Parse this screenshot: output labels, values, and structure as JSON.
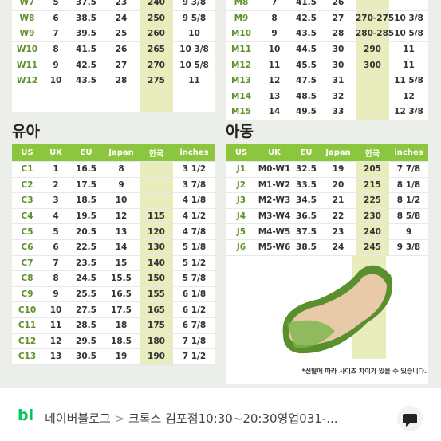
{
  "top_left": {
    "rows": [
      [
        "W7",
        "5",
        "37.5",
        "23",
        "240",
        "9 3/8"
      ],
      [
        "W8",
        "6",
        "38.5",
        "24",
        "250",
        "9 5/8"
      ],
      [
        "W9",
        "7",
        "39.5",
        "25",
        "260",
        "10"
      ],
      [
        "W10",
        "8",
        "41.5",
        "26",
        "265",
        "10 3/8"
      ],
      [
        "W11",
        "9",
        "42.5",
        "27",
        "270",
        "10 5/8"
      ],
      [
        "W12",
        "10",
        "43.5",
        "28",
        "275",
        "11"
      ]
    ]
  },
  "top_right": {
    "rows": [
      [
        "M8",
        "7",
        "41.5",
        "26",
        null,
        null
      ],
      [
        "M9",
        "8",
        "42.5",
        "27",
        "270-275",
        "10 3/8"
      ],
      [
        "M10",
        "9",
        "43.5",
        "28",
        "280-285",
        "10 5/8"
      ],
      [
        "M11",
        "10",
        "44.5",
        "30",
        "290",
        "11"
      ],
      [
        "M12",
        "11",
        "45.5",
        "30",
        "300",
        "11"
      ],
      [
        "M13",
        "12",
        "47.5",
        "31",
        null,
        "11 5/8"
      ],
      [
        "M14",
        "13",
        "48.5",
        "32",
        null,
        "12"
      ],
      [
        "M15",
        "14",
        "49.5",
        "33",
        null,
        "12 3/8"
      ]
    ]
  },
  "infant": {
    "title": "유아",
    "headers": [
      "US",
      "UK",
      "EU",
      "Japan",
      "한국",
      "inches"
    ],
    "rows": [
      [
        "C1",
        "1",
        "16.5",
        "8",
        null,
        "3 1/2"
      ],
      [
        "C2",
        "2",
        "17.5",
        "9",
        null,
        "3 7/8"
      ],
      [
        "C3",
        "3",
        "18.5",
        "10",
        null,
        "4 1/8"
      ],
      [
        "C4",
        "4",
        "19.5",
        "12",
        "115",
        "4 1/2"
      ],
      [
        "C5",
        "5",
        "20.5",
        "13",
        "120",
        "4 7/8"
      ],
      [
        "C6",
        "6",
        "22.5",
        "14",
        "130",
        "5 1/8"
      ],
      [
        "C7",
        "7",
        "23.5",
        "15",
        "140",
        "5 1/2"
      ],
      [
        "C8",
        "8",
        "24.5",
        "15.5",
        "150",
        "5 7/8"
      ],
      [
        "C9",
        "9",
        "25.5",
        "16.5",
        "155",
        "6 1/8"
      ],
      [
        "C10",
        "10",
        "27.5",
        "17.5",
        "165",
        "6 1/2"
      ],
      [
        "C11",
        "11",
        "28.5",
        "18",
        "175",
        "6 7/8"
      ],
      [
        "C12",
        "12",
        "29.5",
        "18.5",
        "180",
        "7 1/8"
      ],
      [
        "C13",
        "13",
        "30.5",
        "19",
        "190",
        "7 1/2"
      ]
    ]
  },
  "kids": {
    "title": "아동",
    "headers": [
      "US",
      "UK",
      "EU",
      "Japan",
      "한국",
      "inches"
    ],
    "rows": [
      [
        "J1",
        "M0-W1",
        "32.5",
        "19",
        "205",
        "7 7/8"
      ],
      [
        "J2",
        "M1-W2",
        "33.5",
        "20",
        "215",
        "8 1/8"
      ],
      [
        "J3",
        "M2-W3",
        "34.5",
        "21",
        "225",
        "8 1/2"
      ],
      [
        "J4",
        "M3-W4",
        "36.5",
        "22",
        "230",
        "8 5/8"
      ],
      [
        "J5",
        "M4-W5",
        "37.5",
        "23",
        "240",
        "9"
      ],
      [
        "J6",
        "M5-W6",
        "38.5",
        "24",
        "245",
        "9 3/8"
      ]
    ],
    "note": "*신발에 따라 사이즈 차이가 있을 수 있습니다."
  },
  "bottom_bar": {
    "logo": "bl",
    "source": "네이버블로그",
    "separator": ">",
    "title": "크록스 김포점10:30~20:30영업031-..."
  }
}
